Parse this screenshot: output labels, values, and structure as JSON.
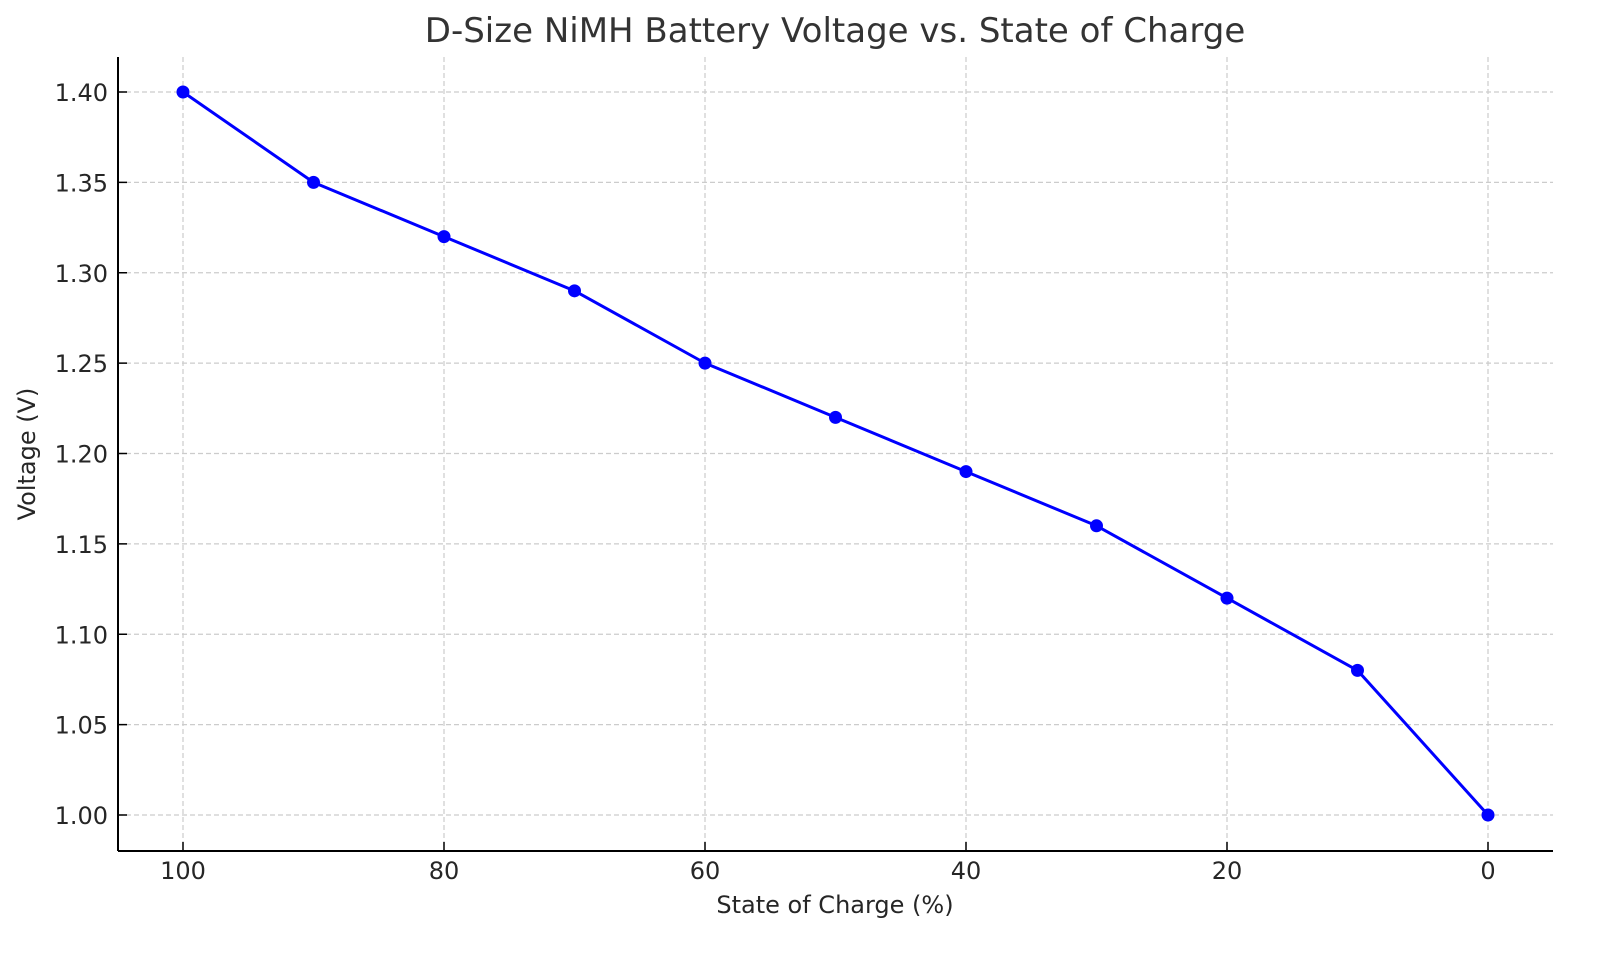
{
  "chart_data": {
    "type": "line",
    "title": "D-Size NiMH Battery Voltage vs. State of Charge",
    "xlabel": "State of Charge (%)",
    "ylabel": "Voltage (V)",
    "x": [
      100,
      90,
      80,
      70,
      60,
      50,
      40,
      30,
      20,
      10,
      0
    ],
    "series": [
      {
        "name": "Voltage",
        "values": [
          1.4,
          1.35,
          1.32,
          1.29,
          1.25,
          1.22,
          1.19,
          1.16,
          1.12,
          1.08,
          1.0
        ],
        "color": "#0000ff",
        "marker": "circle"
      }
    ],
    "x_ticks": [
      "100",
      "80",
      "60",
      "40",
      "20",
      "0"
    ],
    "y_ticks": [
      "1.00",
      "1.05",
      "1.10",
      "1.15",
      "1.20",
      "1.25",
      "1.30",
      "1.35",
      "1.40"
    ],
    "xlim": [
      105,
      -5
    ],
    "ylim": [
      0.98,
      1.42
    ],
    "x_inverted": true,
    "grid": true,
    "legend": null
  }
}
